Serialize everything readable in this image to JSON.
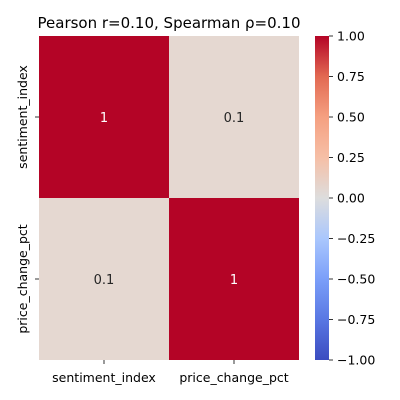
{
  "chart_data": {
    "type": "heatmap",
    "title": "Pearson r=0.10, Spearman ρ=0.10",
    "rows": [
      "sentiment_index",
      "price_change_pct"
    ],
    "columns": [
      "sentiment_index",
      "price_change_pct"
    ],
    "values": [
      [
        1.0,
        0.1
      ],
      [
        0.1,
        1.0
      ]
    ],
    "annotations": [
      [
        "1",
        "0.1"
      ],
      [
        "0.1",
        "1"
      ]
    ],
    "colormap": "coolwarm",
    "vmin": -1.0,
    "vmax": 1.0,
    "colorbar_ticks": [
      "1.00",
      "0.75",
      "0.50",
      "0.25",
      "0.00",
      "−0.25",
      "−0.50",
      "−0.75",
      "−1.00"
    ],
    "colorbar_tick_values": [
      1.0,
      0.75,
      0.5,
      0.25,
      0.0,
      -0.25,
      -0.5,
      -0.75,
      -1.0
    ],
    "colors": {
      "high": "#b40426",
      "mid": "#dddddd",
      "low": "#3b4cc0",
      "cell_0_1": "#e7d7ce"
    }
  }
}
